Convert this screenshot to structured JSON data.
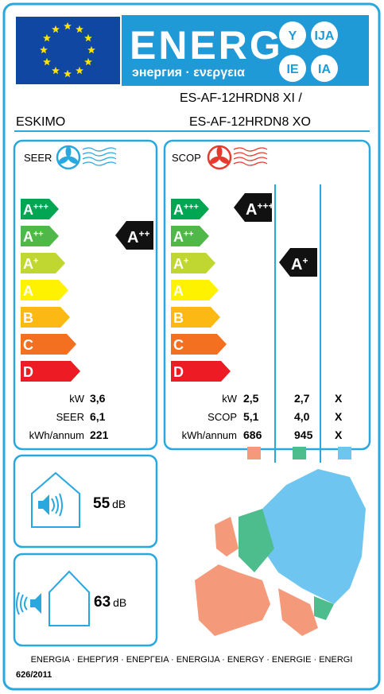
{
  "header": {
    "title": "ENERG",
    "subtitle": "энергия · ενεργεια",
    "badges": [
      "Y",
      "IJA",
      "IE",
      "IA"
    ]
  },
  "supplier": "ESKIMO",
  "model": [
    "ES-AF-12HRDN8 XI /",
    "ES-AF-12HRDN8 XO"
  ],
  "classes": [
    {
      "letter": "A",
      "sup": "+++"
    },
    {
      "letter": "A",
      "sup": "++"
    },
    {
      "letter": "A",
      "sup": "+"
    },
    {
      "letter": "A"
    },
    {
      "letter": "B"
    },
    {
      "letter": "C"
    },
    {
      "letter": "D"
    }
  ],
  "seer": {
    "title": "SEER",
    "rating": {
      "letter": "A",
      "sup": "++"
    },
    "rows": [
      {
        "label": "kW",
        "values": [
          "3,6"
        ]
      },
      {
        "label": "SEER",
        "values": [
          "6,1"
        ]
      },
      {
        "label": "kWh/annum",
        "values": [
          "221"
        ]
      }
    ]
  },
  "scop": {
    "title": "SCOP",
    "ratings": [
      {
        "letter": "A",
        "sup": "+++"
      },
      {
        "letter": "A",
        "sup": "+"
      }
    ],
    "rows": [
      {
        "label": "kW",
        "values": [
          "2,5",
          "2,7",
          "X"
        ]
      },
      {
        "label": "SCOP",
        "values": [
          "5,1",
          "4,0",
          "X"
        ]
      },
      {
        "label": "kWh/annum",
        "values": [
          "686",
          "945",
          "X"
        ]
      }
    ]
  },
  "noise": [
    {
      "value": "55",
      "unit": "dB"
    },
    {
      "value": "63",
      "unit": "dB"
    }
  ],
  "footer": {
    "languages": "ENERGIA · ЕНЕРГИЯ · ΕΝΕΡΓΕΙΑ · ENERGIJA · ENERGY · ENERGIE · ENERGI",
    "regulation": "626/2011"
  }
}
